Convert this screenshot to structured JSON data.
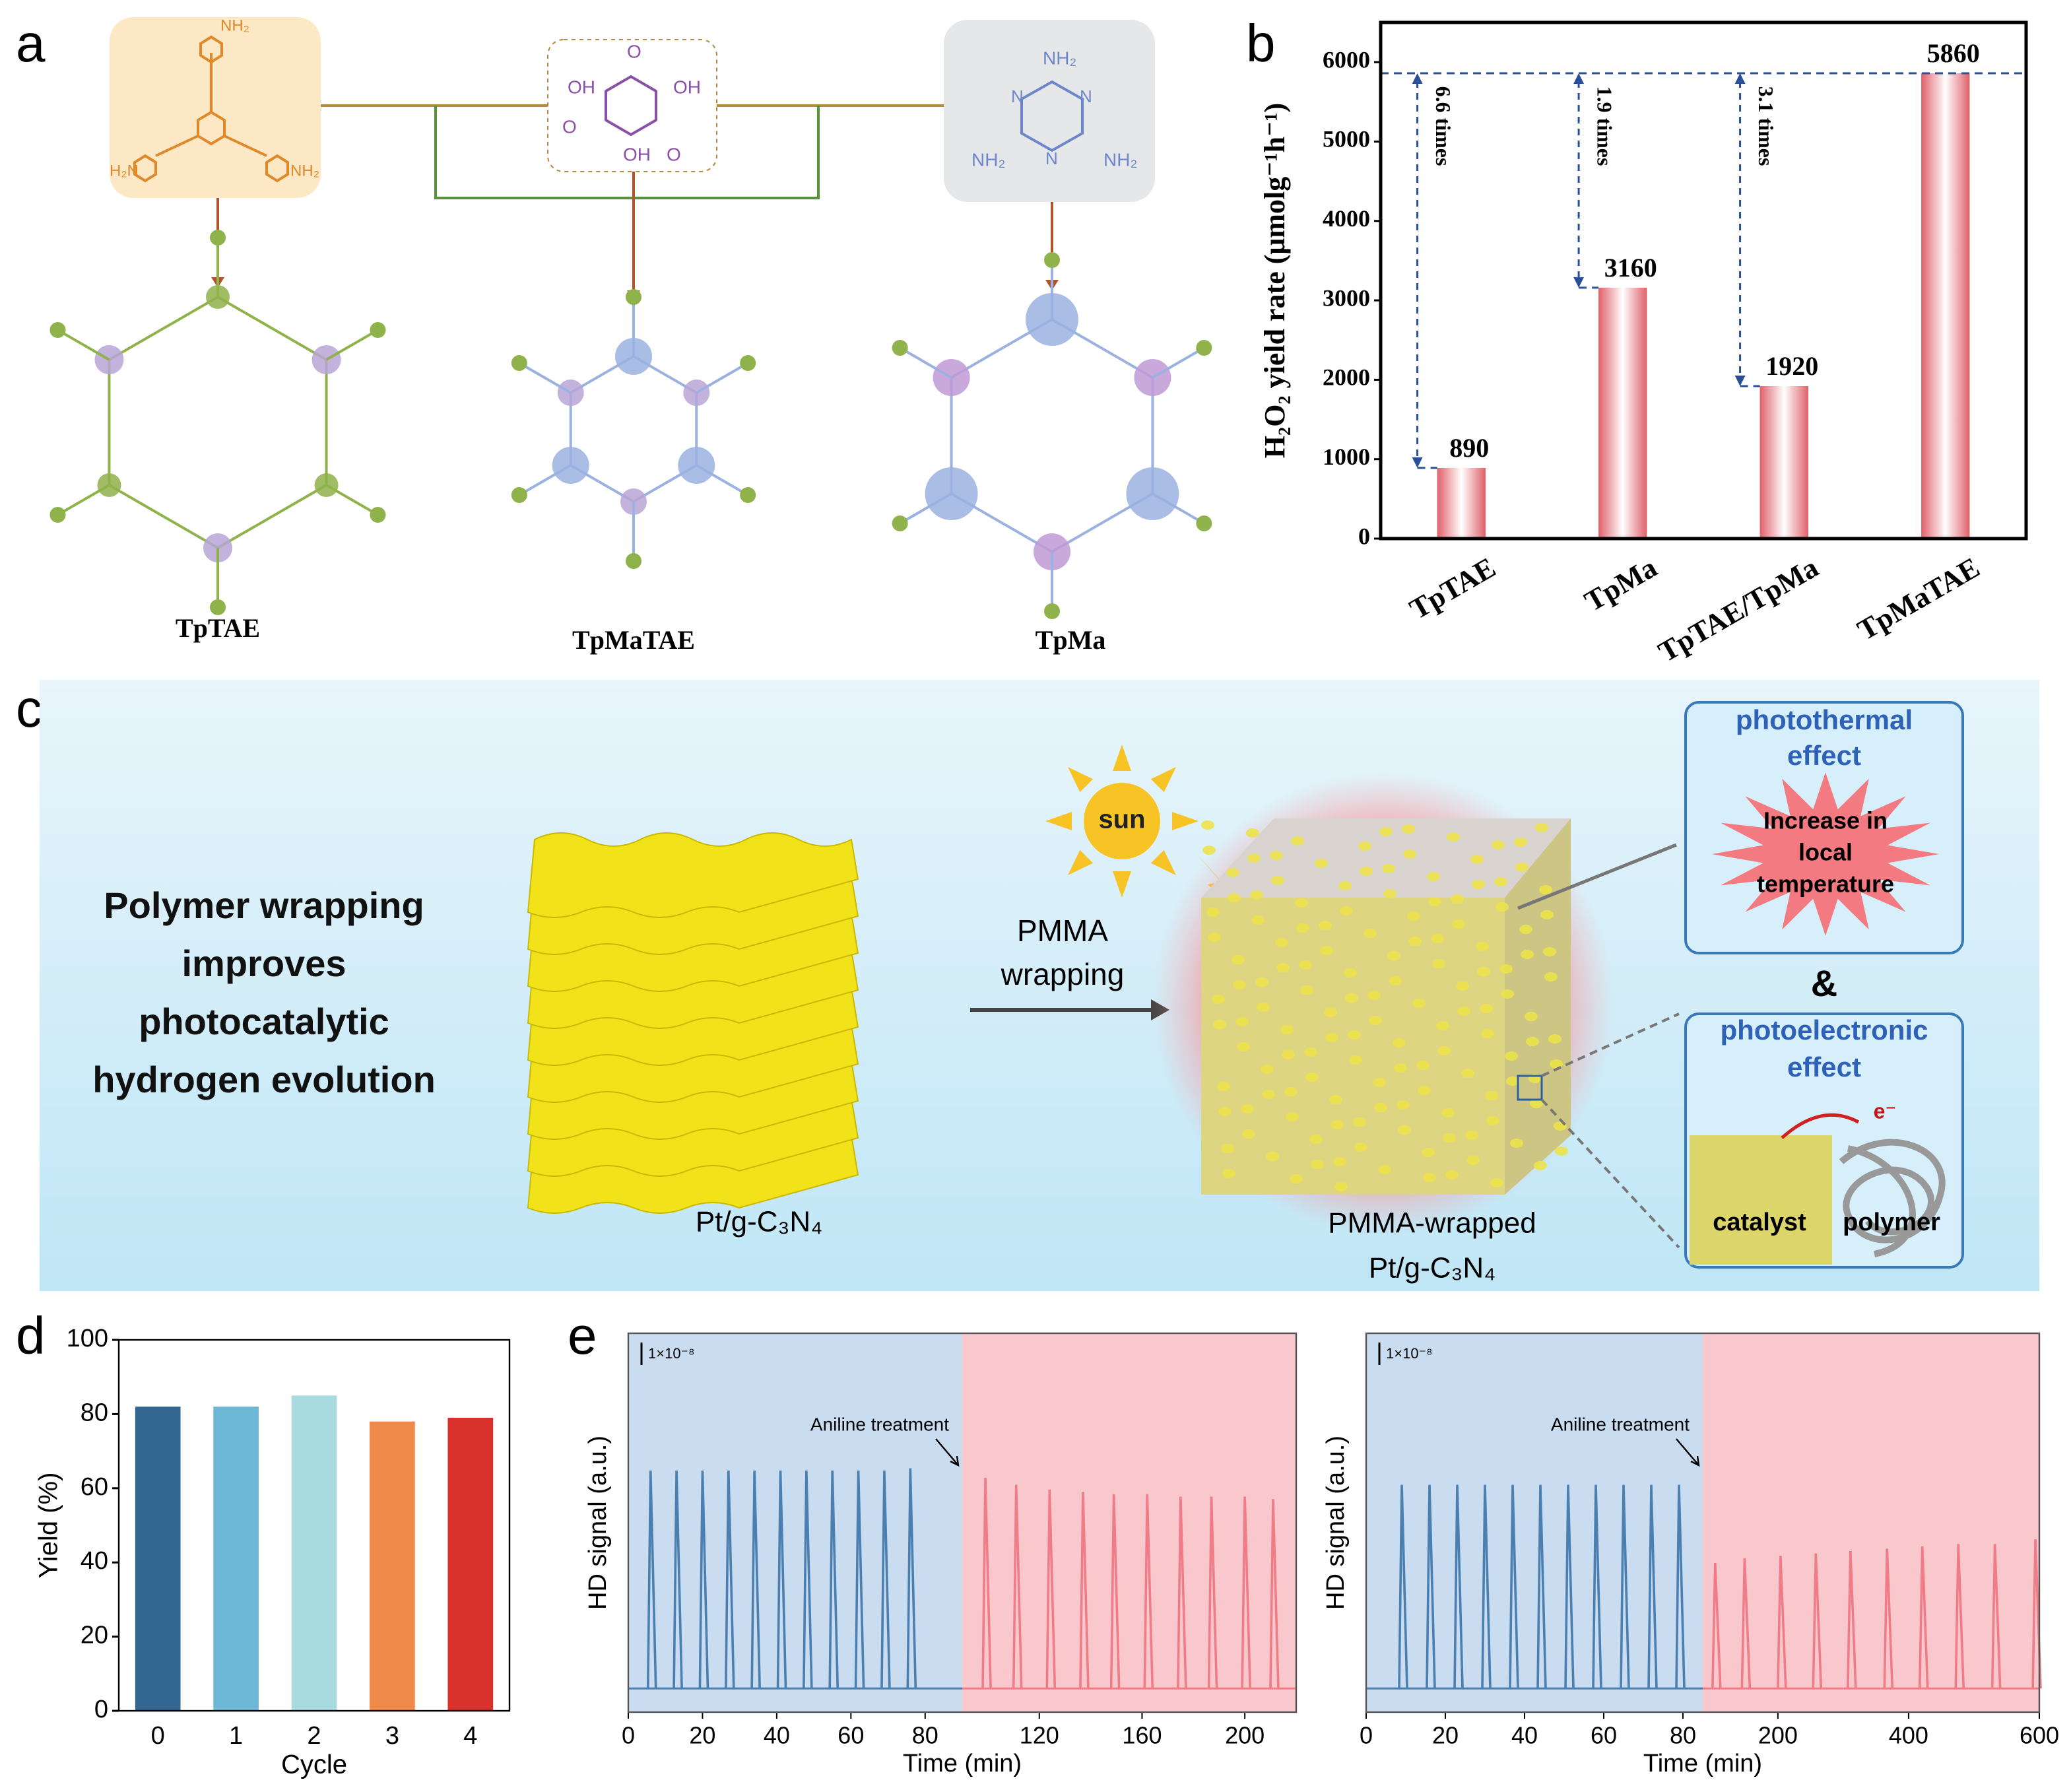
{
  "panel_labels": [
    "a",
    "b",
    "c",
    "d",
    "e"
  ],
  "diagram_a": {
    "TAE_labels": [
      "NH₂",
      "H₂N",
      "NH₂"
    ],
    "Tp_labels": [
      "OH",
      "OH",
      "OH",
      "O",
      "O",
      "O"
    ],
    "Ma_labels": [
      "NH₂",
      "NH₂",
      "NH₂",
      "N",
      "N",
      "N"
    ],
    "products": [
      "TpTAE",
      "TpMaTAE",
      "TpMa"
    ]
  },
  "diagram_c": {
    "headline": [
      "Polymer wrapping",
      "improves",
      "photocatalytic",
      "hydrogen evolution"
    ],
    "material": "Pt/g-C₃N₄",
    "process": [
      "PMMA",
      "wrapping"
    ],
    "sun": "sun",
    "product": [
      "PMMA-wrapped",
      "Pt/g-C₃N₄"
    ],
    "effect1": {
      "title": [
        "photothermal",
        "effect"
      ],
      "text": [
        "Increase in",
        "local",
        "temperature"
      ]
    },
    "and": "&",
    "effect2": {
      "title": [
        "photoelectronic",
        "effect"
      ],
      "electron": "e⁻",
      "catalyst": "catalyst",
      "polymer": "polymer"
    }
  },
  "chart_data": [
    {
      "type": "bar",
      "y_label": "H₂O₂ yield rate (μmolg⁻¹h⁻¹)",
      "categories": [
        "TpTAE",
        "TpMa",
        "TpTAE/TpMa",
        "TpMaTAE"
      ],
      "values": [
        890,
        3160,
        1920,
        5860
      ],
      "color": "#e0606a",
      "show_values": true,
      "annotations": [
        "6.6 times",
        "1.9 times",
        "3.1 times"
      ],
      "xtick_rotation": -30,
      "ylim": [
        0,
        6500
      ],
      "yticks": [
        0,
        1000,
        2000,
        3000,
        4000,
        5000,
        6000
      ]
    },
    {
      "type": "bar",
      "x_label": "Cycle",
      "y_label": "Yield (%)",
      "categories": [
        "0",
        "1",
        "2",
        "3",
        "4"
      ],
      "values": [
        82,
        82,
        85,
        78,
        79
      ],
      "colors": [
        "#336791",
        "#6db8d6",
        "#a8dbe0",
        "#f08a4b",
        "#d8302a"
      ],
      "ylim": [
        0,
        100
      ],
      "yticks": [
        0,
        20,
        40,
        60,
        80,
        100
      ]
    },
    {
      "type": "line",
      "x_label": "Time (min)",
      "y_label": "HD signal (a.u.)",
      "annotation": "Aniline treatment",
      "scale_bar": "1×10⁻⁸",
      "x_break": 90,
      "shade_colors": [
        "#c9dcf0",
        "#f8c8cc"
      ],
      "xlim": [
        0,
        220
      ],
      "xticks": [
        0,
        20,
        40,
        60,
        80,
        120,
        160,
        200
      ],
      "ylim": [
        -0.1,
        1.5
      ],
      "series": [
        {
          "color": "#4a7fb0",
          "x": [
            6,
            13,
            20,
            27,
            34,
            41,
            48,
            55,
            62,
            69,
            76
          ],
          "values": [
            0.92,
            0.92,
            0.92,
            0.92,
            0.92,
            0.92,
            0.92,
            0.92,
            0.92,
            0.92,
            0.93
          ]
        },
        {
          "color": "#f07c88",
          "x": [
            99,
            111,
            124,
            137,
            149,
            162,
            175,
            187,
            200,
            211
          ],
          "values": [
            0.89,
            0.86,
            0.84,
            0.83,
            0.82,
            0.82,
            0.81,
            0.81,
            0.81,
            0.8
          ]
        }
      ]
    },
    {
      "type": "line",
      "x_label": "Time (min)",
      "y_label": "HD signal (a.u.)",
      "annotation": "Aniline treatment",
      "scale_bar": "1×10⁻⁸",
      "x_break": 85,
      "shade_colors": [
        "#c9dcf0",
        "#f8c8cc"
      ],
      "xlim": [
        0,
        600
      ],
      "xticks": [
        0,
        20,
        40,
        60,
        80,
        200,
        400,
        600
      ],
      "ylim": [
        -0.1,
        1.5
      ],
      "series": [
        {
          "color": "#4a7fb0",
          "x": [
            9,
            16,
            23,
            30,
            37,
            44,
            51,
            58,
            65,
            72,
            79
          ],
          "values": [
            0.86,
            0.86,
            0.86,
            0.86,
            0.86,
            0.86,
            0.86,
            0.86,
            0.86,
            0.86,
            0.86
          ]
        },
        {
          "color": "#f07c88",
          "x": [
            104,
            149,
            204,
            258,
            311,
            367,
            421,
            476,
            532,
            594
          ],
          "values": [
            0.53,
            0.55,
            0.56,
            0.57,
            0.58,
            0.59,
            0.6,
            0.61,
            0.61,
            0.63
          ]
        }
      ]
    }
  ]
}
